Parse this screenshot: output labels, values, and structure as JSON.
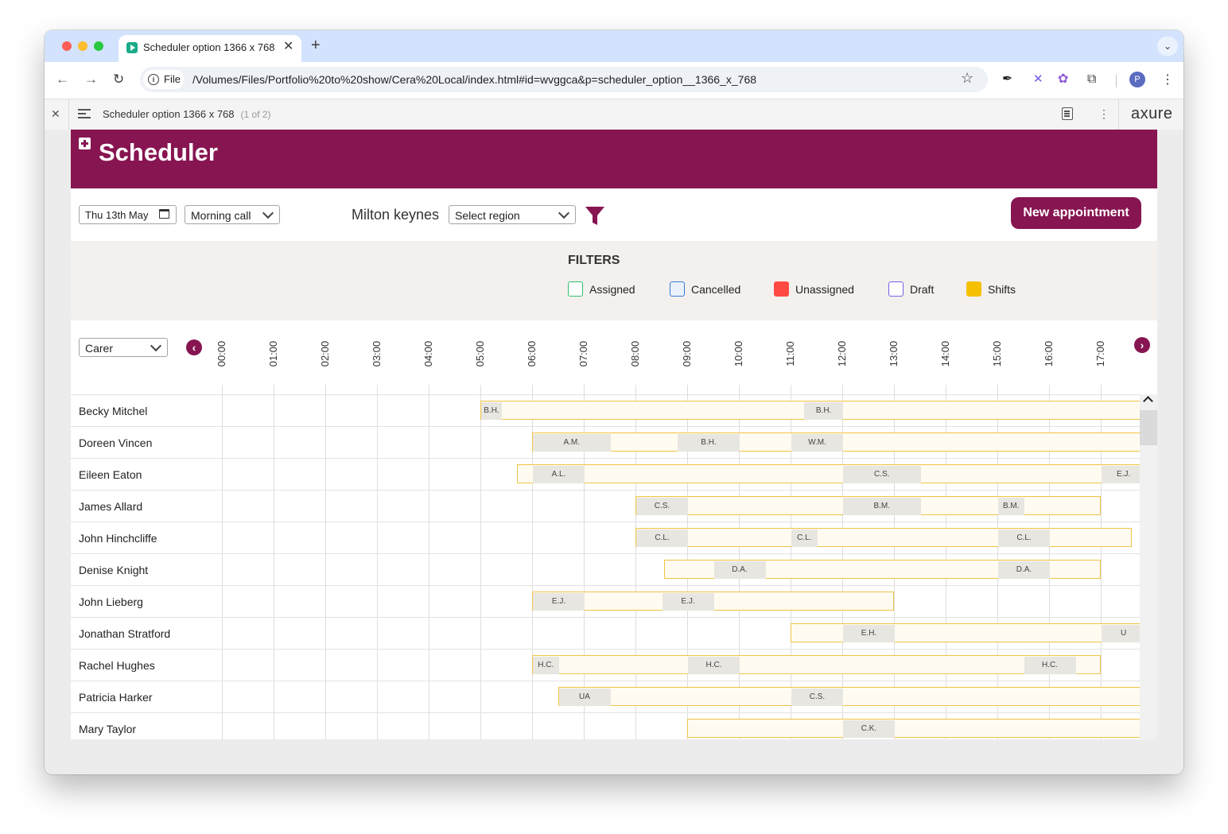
{
  "browser": {
    "tab_title": "Scheduler option 1366 x 768",
    "tab_close": "✕",
    "new_tab": "+",
    "address_chip": "File",
    "url": "/Volumes/Files/Portfolio%20to%20show/Cera%20Local/index.html#id=wvggca&p=scheduler_option__1366_x_768",
    "profile_initial": "P"
  },
  "axure": {
    "page_title": "Scheduler option 1366 x 768",
    "page_count": "(1 of 2)",
    "logo": "axure"
  },
  "app": {
    "title": "Scheduler",
    "brand_color": "#871551",
    "date_value": "Thu 13th May",
    "call_type": "Morning call",
    "location": "Milton keynes",
    "region_placeholder": "Select region",
    "new_appointment": "New appointment",
    "filters_title": "FILTERS",
    "legend": [
      {
        "label": "Assigned",
        "color": "#2fbf6a",
        "fill": "#ffffff"
      },
      {
        "label": "Cancelled",
        "color": "#3a7bd5",
        "fill": "#eaf1fb"
      },
      {
        "label": "Unassigned",
        "color": "#ff4a43",
        "fill": "#ff4a43"
      },
      {
        "label": "Draft",
        "color": "#7b5ee8",
        "fill": "#ffffff"
      },
      {
        "label": "Shifts",
        "color": "#f5c000",
        "fill": "#f5c000"
      }
    ],
    "carer_select": "Carer",
    "hours": [
      "00:00",
      "01:00",
      "02:00",
      "03:00",
      "04:00",
      "05:00",
      "06:00",
      "07:00",
      "08:00",
      "09:00",
      "10:00",
      "11:00",
      "12:00",
      "13:00",
      "14:00",
      "15:00",
      "16:00",
      "17:00"
    ]
  },
  "rows": [
    {
      "name": "Becky Mitchel",
      "shift": [
        5.0,
        17.85
      ],
      "appts": [
        {
          "l": "B.H.",
          "s": 5.0,
          "e": 5.4
        },
        {
          "l": "B.H.",
          "s": 11.25,
          "e": 12.0
        }
      ]
    },
    {
      "name": "Doreen Vincen",
      "shift": [
        6.0,
        17.85
      ],
      "appts": [
        {
          "l": "A.M.",
          "s": 6.0,
          "e": 7.5
        },
        {
          "l": "B.H.",
          "s": 8.8,
          "e": 10.0
        },
        {
          "l": "W.M.",
          "s": 11.0,
          "e": 12.0
        }
      ]
    },
    {
      "name": "Eileen Eaton",
      "shift": [
        5.7,
        17.85
      ],
      "appts": [
        {
          "l": "A.L.",
          "s": 6.0,
          "e": 7.0
        },
        {
          "l": "C.S.",
          "s": 12.0,
          "e": 13.5
        },
        {
          "l": "E.J.",
          "s": 17.0,
          "e": 17.85
        }
      ]
    },
    {
      "name": "James Allard",
      "shift": [
        8.0,
        17.0
      ],
      "appts": [
        {
          "l": "C.S.",
          "s": 8.0,
          "e": 9.0
        },
        {
          "l": "B.M.",
          "s": 12.0,
          "e": 13.5
        },
        {
          "l": "B.M.",
          "s": 15.0,
          "e": 15.5
        }
      ]
    },
    {
      "name": "John Hinchcliffe",
      "shift": [
        8.0,
        17.6
      ],
      "appts": [
        {
          "l": "C.L.",
          "s": 8.0,
          "e": 9.0
        },
        {
          "l": "C.L.",
          "s": 11.0,
          "e": 11.5
        },
        {
          "l": "C.L.",
          "s": 15.0,
          "e": 16.0
        }
      ]
    },
    {
      "name": "Denise Knight",
      "shift": [
        8.55,
        17.0
      ],
      "appts": [
        {
          "l": "D.A.",
          "s": 9.5,
          "e": 10.5
        },
        {
          "l": "D.A.",
          "s": 15.0,
          "e": 16.0
        }
      ]
    },
    {
      "name": "John Lieberg",
      "shift": [
        6.0,
        13.0
      ],
      "appts": [
        {
          "l": "E.J.",
          "s": 6.0,
          "e": 7.0
        },
        {
          "l": "E.J.",
          "s": 8.5,
          "e": 9.5
        }
      ]
    },
    {
      "name": "Jonathan Stratford",
      "shift": [
        11.0,
        17.85
      ],
      "appts": [
        {
          "l": "E.H.",
          "s": 12.0,
          "e": 13.0
        },
        {
          "l": "U",
          "s": 17.0,
          "e": 17.85
        }
      ]
    },
    {
      "name": "Rachel Hughes",
      "shift": [
        6.0,
        17.0
      ],
      "appts": [
        {
          "l": "H.C.",
          "s": 6.0,
          "e": 6.5
        },
        {
          "l": "H.C.",
          "s": 9.0,
          "e": 10.0
        },
        {
          "l": "H.C.",
          "s": 15.5,
          "e": 16.5
        }
      ]
    },
    {
      "name": "Patricia Harker",
      "shift": [
        6.5,
        17.85
      ],
      "appts": [
        {
          "l": "UA",
          "s": 6.5,
          "e": 7.5
        },
        {
          "l": "C.S.",
          "s": 11.0,
          "e": 12.0
        }
      ]
    },
    {
      "name": "Mary Taylor",
      "shift": [
        9.0,
        17.85
      ],
      "appts": [
        {
          "l": "C.K.",
          "s": 12.0,
          "e": 13.0
        }
      ]
    }
  ]
}
